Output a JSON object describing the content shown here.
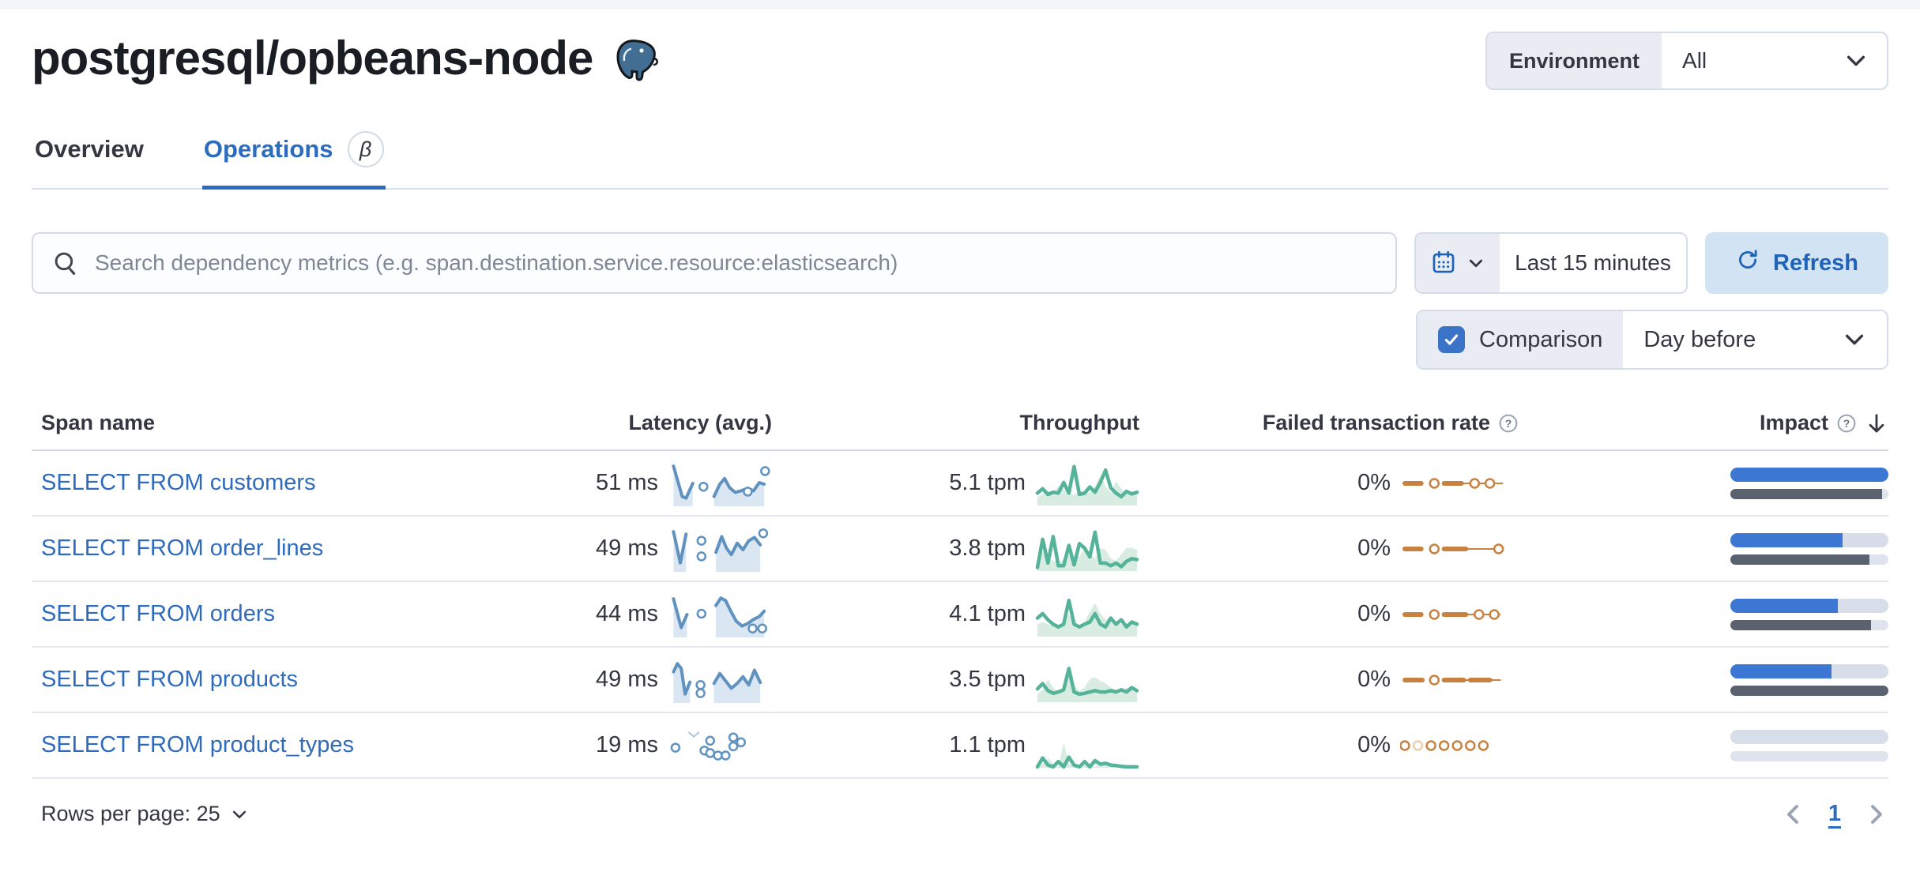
{
  "page": {
    "title": "postgresql/opbeans-node"
  },
  "environment_filter": {
    "label": "Environment",
    "value": "All"
  },
  "tabs": [
    {
      "label": "Overview",
      "active": false
    },
    {
      "label": "Operations",
      "active": true,
      "badge": "β"
    }
  ],
  "search": {
    "placeholder": "Search dependency metrics (e.g. span.destination.service.resource:elasticsearch)"
  },
  "time_picker": {
    "value": "Last 15 minutes"
  },
  "refresh_button": {
    "label": "Refresh"
  },
  "comparison": {
    "label": "Comparison",
    "checked": true,
    "value": "Day before"
  },
  "table": {
    "headers": {
      "span_name": "Span name",
      "latency": "Latency (avg.)",
      "throughput": "Throughput",
      "failed": "Failed transaction rate",
      "impact": "Impact"
    },
    "rows": [
      {
        "span_name": "SELECT FROM customers",
        "latency": "51 ms",
        "throughput": "5.1 tpm",
        "failed_rate": "0%",
        "impact": {
          "current": 100,
          "previous": 96
        },
        "latency_spark": {
          "areas": [
            [
              [
                2,
                8
              ],
              [
                11,
                82
              ],
              [
                15,
                86
              ],
              [
                22,
                50
              ]
            ],
            [
              [
                44,
                82
              ],
              [
                50,
                52
              ],
              [
                55,
                38
              ],
              [
                60,
                60
              ],
              [
                66,
                72
              ],
              [
                72,
                68
              ],
              [
                79,
                62
              ],
              [
                85,
                68
              ],
              [
                91,
                48
              ],
              [
                96,
                52
              ]
            ]
          ],
          "dots": [
            [
              33,
              58
            ],
            [
              79,
              70
            ],
            [
              97,
              20
            ]
          ]
        },
        "throughput_spark": {
          "current": [
            28,
            38,
            25,
            30,
            28,
            52,
            28,
            88,
            25,
            28,
            42,
            30,
            52,
            80,
            40,
            28,
            20,
            32,
            26,
            30
          ],
          "compare": [
            18,
            26,
            33,
            28,
            44,
            36,
            28,
            24,
            33,
            33,
            28,
            44,
            68,
            44,
            28,
            56,
            38,
            26,
            26,
            28
          ]
        },
        "failed_spark": {
          "dashes": [
            [
              0,
              15
            ],
            [
              36,
              52
            ]
          ],
          "thin": [
            [
              52,
              90
            ]
          ],
          "dots": [
            [
              27
            ],
            [
              64
            ],
            [
              78
            ]
          ]
        }
      },
      {
        "span_name": "SELECT FROM order_lines",
        "latency": "49 ms",
        "throughput": "3.8 tpm",
        "failed_rate": "0%",
        "impact": {
          "current": 71,
          "previous": 88
        },
        "latency_spark": {
          "areas": [
            [
              [
                2,
                8
              ],
              [
                9,
                84
              ],
              [
                15,
                14
              ]
            ],
            [
              [
                46,
                58
              ],
              [
                52,
                20
              ],
              [
                57,
                48
              ],
              [
                62,
                64
              ],
              [
                68,
                36
              ],
              [
                74,
                52
              ],
              [
                80,
                30
              ],
              [
                86,
                22
              ],
              [
                92,
                40
              ]
            ]
          ],
          "dots": [
            [
              31,
              30
            ],
            [
              31,
              68
            ],
            [
              95,
              12
            ]
          ]
        },
        "throughput_spark": {
          "current": [
            8,
            72,
            18,
            78,
            12,
            12,
            58,
            14,
            62,
            52,
            32,
            88,
            18,
            18,
            12,
            18,
            10,
            22,
            28,
            26
          ],
          "compare": [
            33,
            43,
            28,
            23,
            18,
            28,
            38,
            28,
            33,
            52,
            43,
            28,
            52,
            48,
            28,
            23,
            38,
            52,
            52,
            48
          ]
        },
        "failed_spark": {
          "dashes": [
            [
              0,
              15
            ],
            [
              36,
              56
            ]
          ],
          "thin": [
            [
              56,
              86
            ]
          ],
          "dots": [
            [
              27
            ],
            [
              86
            ]
          ]
        }
      },
      {
        "span_name": "SELECT FROM orders",
        "latency": "44 ms",
        "throughput": "4.1 tpm",
        "failed_rate": "0%",
        "impact": {
          "current": 68,
          "previous": 89
        },
        "latency_spark": {
          "areas": [
            [
              [
                2,
                12
              ],
              [
                10,
                82
              ],
              [
                16,
                50
              ]
            ],
            [
              [
                46,
                28
              ],
              [
                51,
                10
              ],
              [
                56,
                16
              ],
              [
                61,
                40
              ],
              [
                67,
                66
              ],
              [
                73,
                78
              ],
              [
                79,
                72
              ],
              [
                85,
                62
              ],
              [
                91,
                55
              ],
              [
                96,
                42
              ]
            ]
          ],
          "dots": [
            [
              31,
              48
            ],
            [
              84,
              84
            ],
            [
              94,
              84
            ]
          ]
        },
        "throughput_spark": {
          "current": [
            42,
            52,
            38,
            28,
            22,
            28,
            82,
            28,
            22,
            28,
            33,
            52,
            28,
            22,
            42,
            28,
            38,
            22,
            33,
            28
          ],
          "compare": [
            28,
            33,
            28,
            26,
            23,
            28,
            52,
            28,
            26,
            33,
            56,
            76,
            52,
            38,
            43,
            33,
            28,
            26,
            33,
            28
          ]
        },
        "failed_spark": {
          "dashes": [
            [
              0,
              15
            ],
            [
              36,
              56
            ]
          ],
          "thin": [
            [
              56,
              88
            ]
          ],
          "dots": [
            [
              27
            ],
            [
              68
            ],
            [
              82
            ]
          ]
        }
      },
      {
        "span_name": "SELECT FROM products",
        "latency": "49 ms",
        "throughput": "3.5 tpm",
        "failed_rate": "0%",
        "impact": {
          "current": 64,
          "previous": 100
        },
        "latency_spark": {
          "areas": [
            [
              [
                2,
                30
              ],
              [
                6,
                10
              ],
              [
                10,
                22
              ],
              [
                14,
                84
              ],
              [
                19,
                55
              ]
            ],
            [
              [
                44,
                58
              ],
              [
                50,
                34
              ],
              [
                56,
                52
              ],
              [
                62,
                70
              ],
              [
                68,
                58
              ],
              [
                74,
                42
              ],
              [
                80,
                62
              ],
              [
                86,
                26
              ],
              [
                92,
                56
              ]
            ]
          ],
          "dots": [
            [
              30,
              62
            ],
            [
              30,
              82
            ]
          ]
        },
        "throughput_spark": {
          "current": [
            30,
            42,
            26,
            20,
            23,
            28,
            76,
            23,
            18,
            20,
            23,
            26,
            23,
            23,
            26,
            23,
            28,
            23,
            33,
            26
          ],
          "compare": [
            18,
            28,
            52,
            33,
            23,
            26,
            86,
            38,
            26,
            33,
            52,
            56,
            48,
            43,
            33,
            28,
            26,
            33,
            28,
            23
          ]
        },
        "failed_spark": {
          "dashes": [
            [
              0,
              16
            ],
            [
              36,
              54
            ],
            [
              60,
              78
            ]
          ],
          "thin": [
            [
              54,
              88
            ]
          ],
          "dots": [
            [
              27
            ]
          ]
        }
      },
      {
        "span_name": "SELECT FROM product_types",
        "latency": "19 ms",
        "throughput": "1.1 tpm",
        "failed_rate": "0%",
        "impact": {
          "current": 0,
          "previous": 0
        },
        "latency_spark": {
          "areas": [],
          "thin": [
            [
              [
                18,
                18
              ],
              [
                23,
                28
              ],
              [
                28,
                18
              ]
            ]
          ],
          "dots": [
            [
              4,
              55
            ],
            [
              34,
              62
            ],
            [
              40,
              38
            ],
            [
              40,
              68
            ],
            [
              48,
              74
            ],
            [
              56,
              74
            ],
            [
              64,
              52
            ],
            [
              64,
              30
            ],
            [
              72,
              42
            ]
          ]
        },
        "throughput_spark": {
          "current": [
            2,
            22,
            6,
            2,
            14,
            2,
            24,
            6,
            2,
            14,
            2,
            16,
            8,
            10,
            6,
            5,
            3,
            2,
            2,
            2
          ],
          "compare": [
            2,
            7,
            22,
            9,
            2,
            58,
            9,
            3,
            2,
            7,
            3,
            2,
            9,
            5,
            3,
            2,
            5,
            3,
            2,
            2
          ]
        },
        "failed_spark": {
          "dashes": [],
          "thin": [],
          "dots": [
            [
              0
            ],
            [
              12,
              1
            ],
            [
              24
            ],
            [
              36
            ],
            [
              48
            ],
            [
              60
            ],
            [
              72
            ]
          ]
        }
      }
    ]
  },
  "footer": {
    "rows_per_page": "Rows per page: 25",
    "page": "1"
  },
  "colors": {
    "link": "#2f6bbc",
    "tab_active": "#2c6cbe",
    "impact_current": "#3b77d3",
    "impact_previous": "#5a6270",
    "track_top": "#d7dde9",
    "track_bottom": "#dee3ee",
    "refresh_bg": "#d2e3f3",
    "refresh_text": "#1e63b8",
    "checkbox": "#3a73c8",
    "border": "#d6dce8",
    "segment_bg": "#e9ecf3",
    "text": "#343741",
    "placeholder": "#7d8796",
    "latency_line": "#6092c0",
    "latency_fill": "#dbe6f3",
    "latency_thin": "#aec4de",
    "throughput_line": "#54b399",
    "throughput_fill": "#d8ece2",
    "failed_line": "#c8813f",
    "failed_faded": "#eacfae",
    "pagination_chevron": "#98a2b3"
  }
}
